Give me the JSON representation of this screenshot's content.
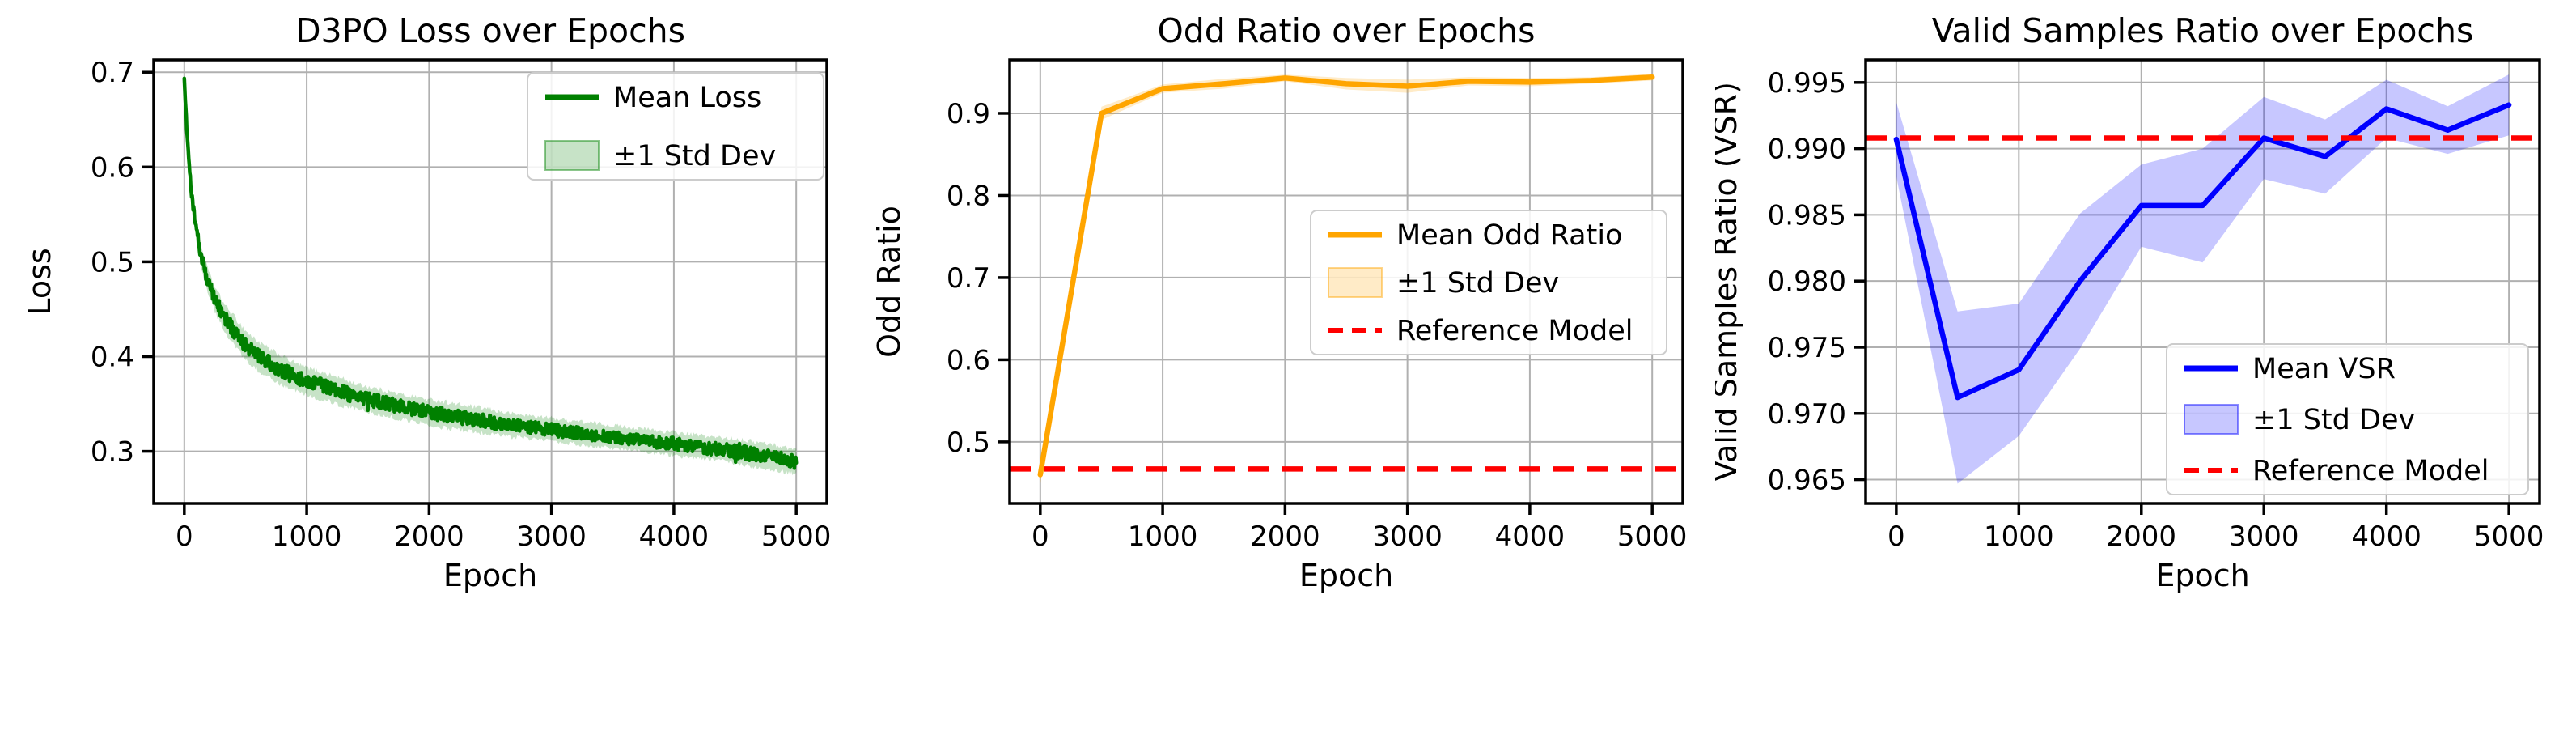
{
  "figure": {
    "background": "#ffffff",
    "grid_color": "#b0b0b0",
    "spine_color": "#000000",
    "reference_color": "#ff0000",
    "legend_border_color": "#cccccc"
  },
  "chart_data": [
    {
      "type": "line",
      "title": "D3PO Loss over Epochs",
      "xlabel": "Epoch",
      "ylabel": "Loss",
      "xlim": [
        -250,
        5250
      ],
      "ylim": [
        0.245,
        0.713
      ],
      "grid": true,
      "x_ticks": {
        "values": [
          0,
          1000,
          2000,
          3000,
          4000,
          5000
        ],
        "labels": [
          "0",
          "1000",
          "2000",
          "3000",
          "4000",
          "5000"
        ]
      },
      "y_ticks": {
        "values": [
          0.3,
          0.4,
          0.5,
          0.6,
          0.7
        ],
        "labels": [
          "0.3",
          "0.4",
          "0.5",
          "0.6",
          "0.7"
        ]
      },
      "line_color": "#008000",
      "band_color": "#008000",
      "band_opacity": 0.22,
      "noisy": true,
      "epochs": [
        0,
        20,
        40,
        60,
        80,
        100,
        140,
        180,
        220,
        260,
        300,
        350,
        400,
        450,
        500,
        560,
        620,
        700,
        800,
        900,
        1000,
        1100,
        1200,
        1300,
        1400,
        1500,
        1600,
        1700,
        1800,
        1900,
        2000,
        2100,
        2200,
        2300,
        2400,
        2500,
        2600,
        2700,
        2800,
        2900,
        3000,
        3100,
        3200,
        3300,
        3400,
        3500,
        3600,
        3700,
        3800,
        3900,
        4000,
        4100,
        4200,
        4300,
        4400,
        4500,
        4600,
        4700,
        4800,
        4900,
        5000
      ],
      "mean": [
        0.695,
        0.64,
        0.6,
        0.572,
        0.55,
        0.532,
        0.505,
        0.485,
        0.47,
        0.458,
        0.448,
        0.437,
        0.428,
        0.42,
        0.412,
        0.405,
        0.399,
        0.392,
        0.385,
        0.379,
        0.374,
        0.37,
        0.366,
        0.362,
        0.358,
        0.355,
        0.352,
        0.349,
        0.346,
        0.344,
        0.341,
        0.339,
        0.337,
        0.335,
        0.333,
        0.331,
        0.329,
        0.327,
        0.326,
        0.324,
        0.323,
        0.321,
        0.32,
        0.318,
        0.317,
        0.315,
        0.314,
        0.312,
        0.311,
        0.309,
        0.308,
        0.306,
        0.305,
        0.303,
        0.302,
        0.3,
        0.298,
        0.296,
        0.294,
        0.291,
        0.289
      ],
      "std": [
        0.004,
        0.006,
        0.007,
        0.008,
        0.009,
        0.01,
        0.011,
        0.012,
        0.012,
        0.013,
        0.013,
        0.014,
        0.015,
        0.015,
        0.015,
        0.015,
        0.015,
        0.015,
        0.015,
        0.014,
        0.014,
        0.014,
        0.014,
        0.014,
        0.013,
        0.013,
        0.013,
        0.013,
        0.013,
        0.013,
        0.013,
        0.014,
        0.013,
        0.013,
        0.013,
        0.013,
        0.012,
        0.012,
        0.012,
        0.012,
        0.012,
        0.012,
        0.012,
        0.012,
        0.012,
        0.012,
        0.012,
        0.012,
        0.012,
        0.012,
        0.012,
        0.012,
        0.012,
        0.012,
        0.012,
        0.013,
        0.013,
        0.013,
        0.013,
        0.013,
        0.013
      ],
      "legend": {
        "location": "upper right",
        "entries": [
          {
            "label": "Mean Loss",
            "swatch": "line"
          },
          {
            "label": "±1 Std Dev",
            "swatch": "patch"
          }
        ]
      }
    },
    {
      "type": "line",
      "title": "Odd Ratio over Epochs",
      "xlabel": "Epoch",
      "ylabel": "Odd Ratio",
      "xlim": [
        -250,
        5250
      ],
      "ylim": [
        0.425,
        0.965
      ],
      "grid": true,
      "x_ticks": {
        "values": [
          0,
          1000,
          2000,
          3000,
          4000,
          5000
        ],
        "labels": [
          "0",
          "1000",
          "2000",
          "3000",
          "4000",
          "5000"
        ]
      },
      "y_ticks": {
        "values": [
          0.5,
          0.6,
          0.7,
          0.8,
          0.9
        ],
        "labels": [
          "0.5",
          "0.6",
          "0.7",
          "0.8",
          "0.9"
        ]
      },
      "line_color": "#ffa500",
      "band_color": "#ffa500",
      "band_opacity": 0.22,
      "noisy": false,
      "epochs": [
        0,
        500,
        1000,
        1500,
        2000,
        2500,
        3000,
        3500,
        4000,
        4500,
        5000
      ],
      "mean": [
        0.46,
        0.9,
        0.93,
        0.936,
        0.943,
        0.936,
        0.933,
        0.939,
        0.938,
        0.94,
        0.944
      ],
      "std": [
        0.012,
        0.008,
        0.005,
        0.006,
        0.004,
        0.007,
        0.008,
        0.005,
        0.005,
        0.004,
        0.004
      ],
      "reference": {
        "value": 0.467,
        "label": "Reference Model"
      },
      "legend": {
        "location": "center right",
        "entries": [
          {
            "label": "Mean Odd Ratio",
            "swatch": "line"
          },
          {
            "label": "±1 Std Dev",
            "swatch": "patch"
          },
          {
            "label": "Reference Model",
            "swatch": "dashed"
          }
        ]
      }
    },
    {
      "type": "line",
      "title": "Valid Samples Ratio over Epochs",
      "xlabel": "Epoch",
      "ylabel": "Valid Samples Ratio (VSR)",
      "xlim": [
        -250,
        5250
      ],
      "ylim": [
        0.9632,
        0.9967
      ],
      "grid": true,
      "x_ticks": {
        "values": [
          0,
          1000,
          2000,
          3000,
          4000,
          5000
        ],
        "labels": [
          "0",
          "1000",
          "2000",
          "3000",
          "4000",
          "5000"
        ]
      },
      "y_ticks": {
        "values": [
          0.965,
          0.97,
          0.975,
          0.98,
          0.985,
          0.99,
          0.995
        ],
        "labels": [
          "0.965",
          "0.970",
          "0.975",
          "0.980",
          "0.985",
          "0.990",
          "0.995"
        ]
      },
      "line_color": "#0000ff",
      "band_color": "#0000ff",
      "band_opacity": 0.22,
      "noisy": false,
      "epochs": [
        0,
        500,
        1000,
        1500,
        2000,
        2500,
        3000,
        3500,
        4000,
        4500,
        5000
      ],
      "mean": [
        0.9907,
        0.9712,
        0.9733,
        0.98,
        0.9857,
        0.9857,
        0.9908,
        0.9894,
        0.993,
        0.9914,
        0.9933
      ],
      "std": [
        0.0028,
        0.0065,
        0.005,
        0.0051,
        0.0031,
        0.0043,
        0.0031,
        0.0028,
        0.0022,
        0.0018,
        0.0023
      ],
      "reference": {
        "value": 0.9908,
        "label": "Reference Model"
      },
      "legend": {
        "location": "lower right",
        "entries": [
          {
            "label": "Mean VSR",
            "swatch": "line"
          },
          {
            "label": "±1 Std Dev",
            "swatch": "patch"
          },
          {
            "label": "Reference Model",
            "swatch": "dashed"
          }
        ]
      }
    }
  ]
}
